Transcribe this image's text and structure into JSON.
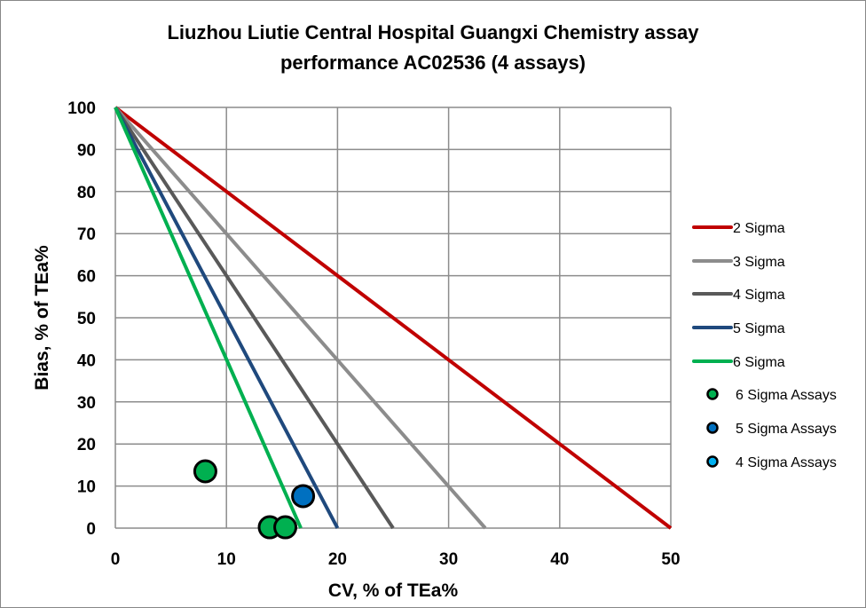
{
  "chart_data": {
    "type": "scatter",
    "title_line1": "Liuzhou Liutie Central Hospital Guangxi Chemistry assay",
    "title_line2": "performance AC02536 (4 assays)",
    "xlabel": "CV, % of TEa%",
    "ylabel": "Bias, % of TEa%",
    "xlim": [
      0,
      50
    ],
    "ylim": [
      0,
      100
    ],
    "x_ticks": [
      "0",
      "10",
      "20",
      "30",
      "40",
      "50"
    ],
    "y_ticks": [
      "0",
      "10",
      "20",
      "30",
      "40",
      "50",
      "60",
      "70",
      "80",
      "90",
      "100"
    ],
    "grid": true,
    "legend_position": "right",
    "lines": [
      {
        "name": "2 Sigma",
        "color": "#C00000",
        "x": [
          0,
          50
        ],
        "y": [
          100,
          0
        ]
      },
      {
        "name": "3 Sigma",
        "color": "#8C8C8C",
        "x": [
          0,
          33.3
        ],
        "y": [
          100,
          0
        ]
      },
      {
        "name": "4 Sigma",
        "color": "#595959",
        "x": [
          0,
          25
        ],
        "y": [
          100,
          0
        ]
      },
      {
        "name": "5 Sigma",
        "color": "#1F497D",
        "x": [
          0,
          20
        ],
        "y": [
          100,
          0
        ]
      },
      {
        "name": "6 Sigma",
        "color": "#00B050",
        "x": [
          0,
          16.7
        ],
        "y": [
          100,
          0
        ]
      }
    ],
    "series": [
      {
        "name": "6 Sigma Assays",
        "color": "#00B050",
        "points": [
          [
            8.1,
            13.5
          ],
          [
            13.9,
            0.2
          ],
          [
            15.3,
            0.2
          ]
        ]
      },
      {
        "name": "5 Sigma Assays",
        "color": "#0070C0",
        "points": [
          [
            16.9,
            7.6
          ]
        ]
      },
      {
        "name": "4 Sigma Assays",
        "color": "#00B0F0",
        "points": []
      }
    ]
  }
}
